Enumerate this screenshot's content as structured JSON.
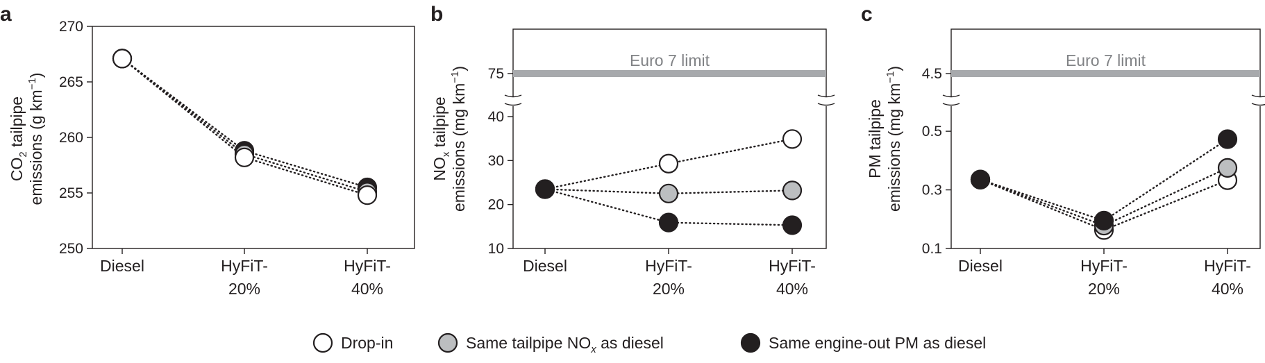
{
  "legend": [
    {
      "label_main": "Drop-in",
      "label_sub": "",
      "label_tail": "",
      "fill": "#ffffff",
      "key": "dropin"
    },
    {
      "label_main": "Same tailpipe NO",
      "label_sub": "x",
      "label_tail": " as diesel",
      "fill": "#bcbec0",
      "key": "nox"
    },
    {
      "label_main": "Same engine-out PM as diesel",
      "label_sub": "",
      "label_tail": "",
      "fill": "#231f20",
      "key": "pm"
    }
  ],
  "chart_data": [
    {
      "type": "scatter",
      "panel": "a",
      "categories": [
        "Diesel",
        "HyFiT-\n20%",
        "HyFiT-\n40%"
      ],
      "ylabel_line1_pre": "CO",
      "ylabel_line1_sub": "2",
      "ylabel_line1_post": " tailpipe",
      "ylabel_line2_pre": "emissions (g km",
      "ylabel_line2_sup": "−1",
      "ylabel_line2_post": ")",
      "ylim": [
        250,
        270
      ],
      "yticks": [
        250,
        255,
        260,
        265,
        270
      ],
      "broken_axis": false,
      "series": [
        {
          "key": "pm",
          "values": [
            267.1,
            258.8,
            255.5
          ]
        },
        {
          "key": "nox",
          "values": [
            267.1,
            258.5,
            255.1
          ]
        },
        {
          "key": "dropin",
          "values": [
            267.1,
            258.2,
            254.8
          ]
        }
      ]
    },
    {
      "type": "scatter",
      "panel": "b",
      "categories": [
        "Diesel",
        "HyFiT-\n20%",
        "HyFiT-\n40%"
      ],
      "ylabel_line1_pre": "NO",
      "ylabel_line1_sub": "x",
      "ylabel_line1_post": " tailpipe",
      "ylabel_line2_pre": "emissions (mg km",
      "ylabel_line2_sup": "−1",
      "ylabel_line2_post": ")",
      "ylim": [
        10,
        40
      ],
      "yticks": [
        10,
        20,
        30,
        40
      ],
      "broken_axis": true,
      "upper_ticks": [
        75
      ],
      "limit": {
        "value": 75,
        "label": "Euro 7 limit"
      },
      "series": [
        {
          "key": "dropin",
          "values": [
            23.5,
            29.3,
            34.9
          ]
        },
        {
          "key": "nox",
          "values": [
            23.5,
            22.5,
            23.2
          ]
        },
        {
          "key": "pm",
          "values": [
            23.5,
            15.9,
            15.3
          ]
        }
      ]
    },
    {
      "type": "scatter",
      "panel": "c",
      "categories": [
        "Diesel",
        "HyFiT-\n20%",
        "HyFiT-\n40%"
      ],
      "ylabel_line1_pre": "PM tailpipe",
      "ylabel_line1_sub": "",
      "ylabel_line1_post": "",
      "ylabel_line2_pre": "emissions (mg km",
      "ylabel_line2_sup": "−1",
      "ylabel_line2_post": ")",
      "ylim": [
        0.1,
        0.55
      ],
      "yticks": [
        0.1,
        0.3,
        0.5
      ],
      "broken_axis": true,
      "upper_ticks": [
        4.5
      ],
      "limit": {
        "value": 4.5,
        "label": "Euro 7 limit"
      },
      "series": [
        {
          "key": "dropin",
          "values": [
            0.335,
            0.163,
            0.333
          ]
        },
        {
          "key": "nox",
          "values": [
            0.335,
            0.178,
            0.375
          ]
        },
        {
          "key": "pm",
          "values": [
            0.335,
            0.195,
            0.473
          ]
        }
      ]
    }
  ]
}
